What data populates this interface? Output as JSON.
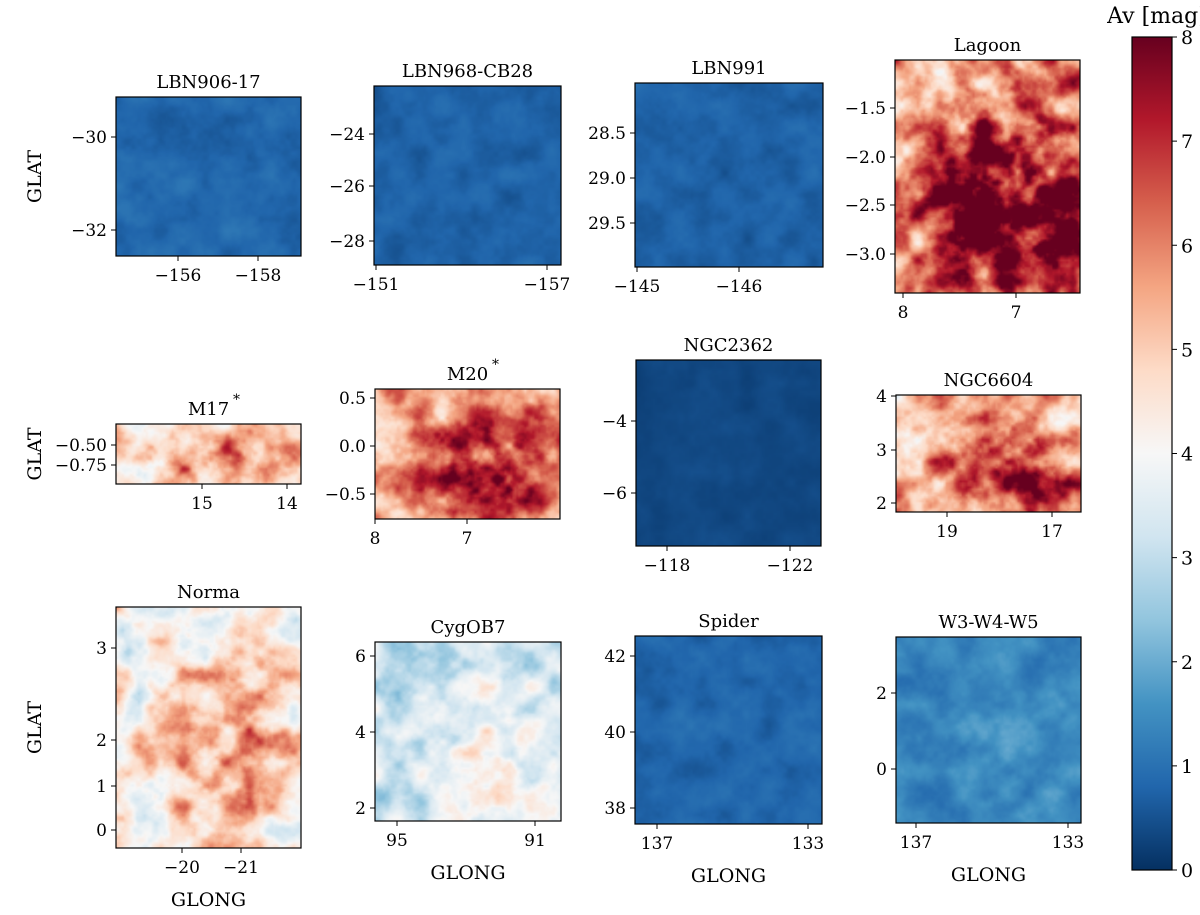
{
  "figure": {
    "colorbar": {
      "label": "Av [mag]",
      "min": 0,
      "max": 8,
      "ticks": [
        "0",
        "1",
        "2",
        "3",
        "4",
        "5",
        "6",
        "7",
        "8"
      ],
      "colormap": "RdBu_r",
      "colors": [
        "#053061",
        "#2166ac",
        "#4393c3",
        "#92c5de",
        "#d1e5f0",
        "#f7f7f7",
        "#fddbc7",
        "#f4a582",
        "#d6604d",
        "#b2182b",
        "#67001f"
      ]
    },
    "common_xlabel": "GLONG",
    "common_ylabel": "GLAT"
  },
  "chart_data": [
    {
      "type": "heatmap",
      "title": "LBN906-17",
      "xlabel": "",
      "ylabel": "GLAT",
      "xticks": [
        "−156",
        "−158"
      ],
      "yticks": [
        "−30",
        "−32"
      ],
      "level": 0.85,
      "hot": 0.0
    },
    {
      "type": "heatmap",
      "title": "LBN968-CB28",
      "xlabel": "",
      "ylabel": "",
      "xticks": [
        "−151",
        "−157"
      ],
      "yticks": [
        "−24",
        "−26",
        "−28"
      ],
      "level": 0.75,
      "hot": 0.0
    },
    {
      "type": "heatmap",
      "title": "LBN991",
      "xlabel": "",
      "ylabel": "",
      "xticks": [
        "−145",
        "−146"
      ],
      "yticks": [
        "28.5",
        "29.0",
        "29.5"
      ],
      "level": 0.75,
      "hot": 0.0
    },
    {
      "type": "heatmap",
      "title": "Lagoon",
      "xlabel": "",
      "ylabel": "",
      "xticks": [
        "8",
        "7"
      ],
      "yticks": [
        "−1.5",
        "−2.0",
        "−2.5",
        "−3.0"
      ],
      "level": 6.0,
      "hot": 0.8
    },
    {
      "type": "heatmap",
      "title": "M17",
      "title_mark": "*",
      "xlabel": "",
      "ylabel": "GLAT",
      "xticks": [
        "15",
        "14"
      ],
      "yticks": [
        "−0.50",
        "−0.75"
      ],
      "level": 5.0,
      "hot": 0.5
    },
    {
      "type": "heatmap",
      "title": "M20",
      "title_mark": "*",
      "xlabel": "",
      "ylabel": "",
      "xticks": [
        "8",
        "7"
      ],
      "yticks": [
        "0.5",
        "0.0",
        "−0.5"
      ],
      "level": 5.5,
      "hot": 0.6
    },
    {
      "type": "heatmap",
      "title": "NGC2362",
      "xlabel": "",
      "ylabel": "",
      "xticks": [
        "−118",
        "−122"
      ],
      "yticks": [
        "−4",
        "−6"
      ],
      "level": 0.35,
      "hot": 0.0
    },
    {
      "type": "heatmap",
      "title": "NGC6604",
      "xlabel": "",
      "ylabel": "",
      "xticks": [
        "19",
        "17"
      ],
      "yticks": [
        "4",
        "3",
        "2"
      ],
      "level": 5.5,
      "hot": 0.6
    },
    {
      "type": "heatmap",
      "title": "Norma",
      "xlabel": "GLONG",
      "ylabel": "GLAT",
      "xticks": [
        "−20",
        "−21"
      ],
      "yticks": [
        "3",
        "2",
        "1",
        "0"
      ],
      "level": 4.2,
      "hot": 0.5
    },
    {
      "type": "heatmap",
      "title": "CygOB7",
      "xlabel": "GLONG",
      "ylabel": "",
      "xticks": [
        "95",
        "91"
      ],
      "yticks": [
        "6",
        "4",
        "2"
      ],
      "level": 3.2,
      "hot": 0.3
    },
    {
      "type": "heatmap",
      "title": "Spider",
      "xlabel": "GLONG",
      "ylabel": "",
      "xticks": [
        "137",
        "133"
      ],
      "yticks": [
        "42",
        "40",
        "38"
      ],
      "level": 0.8,
      "hot": 0.0
    },
    {
      "type": "heatmap",
      "title": "W3-W4-W5",
      "xlabel": "GLONG",
      "ylabel": "",
      "xticks": [
        "137",
        "133"
      ],
      "yticks": [
        "2",
        "0"
      ],
      "level": 1.3,
      "hot": 0.1
    }
  ]
}
